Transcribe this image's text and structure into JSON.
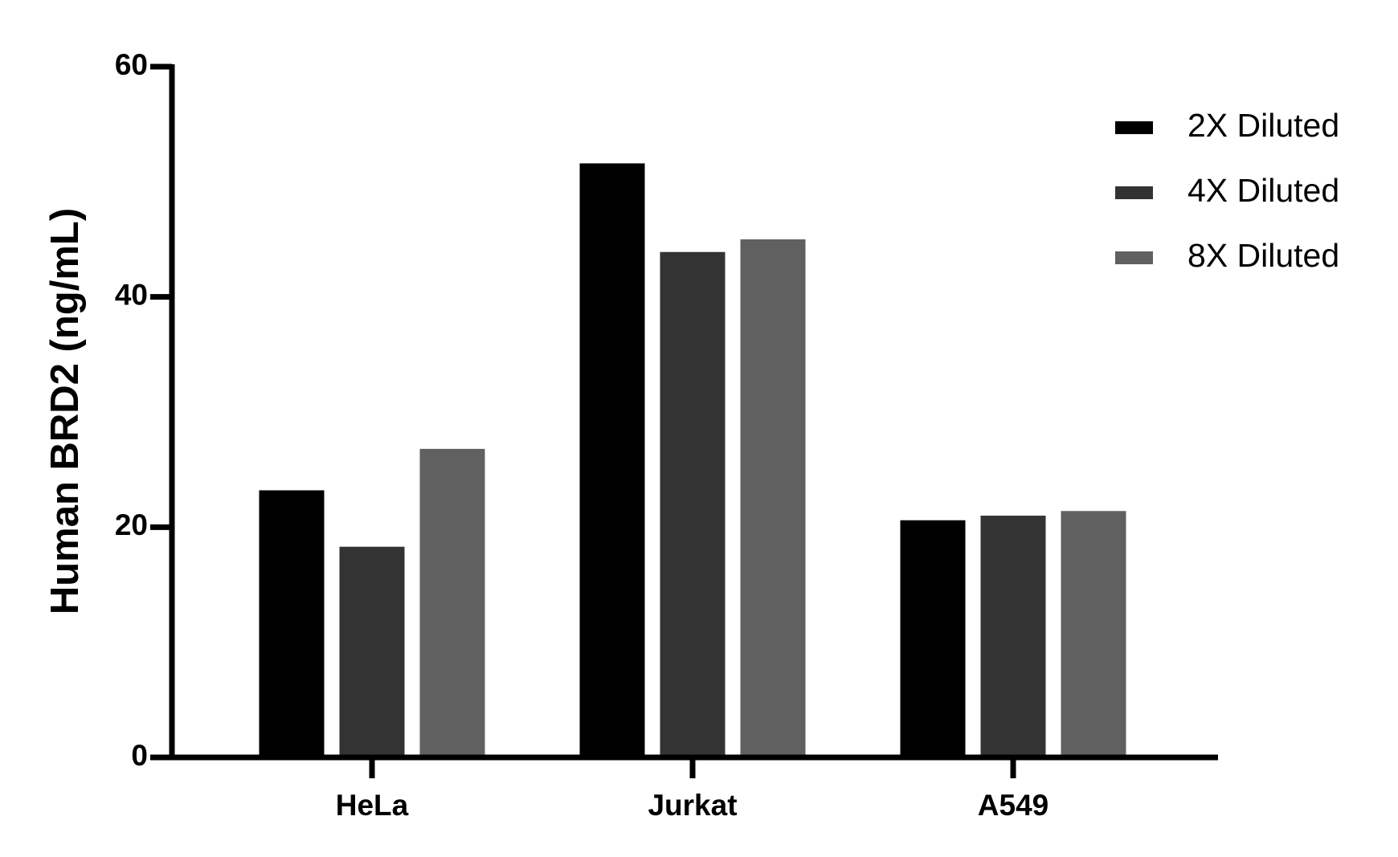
{
  "chart_data": {
    "type": "bar",
    "y_label": "Human BRD2 (ng/mL)",
    "categories": [
      "HeLa",
      "Jurkat",
      "A549"
    ],
    "series": [
      {
        "name": "2X Diluted",
        "color": "#000000",
        "values": [
          23.2,
          51.6,
          20.6
        ]
      },
      {
        "name": "4X Diluted",
        "color": "#333333",
        "values": [
          18.3,
          43.9,
          21.0
        ]
      },
      {
        "name": "8X Diluted",
        "color": "#606060",
        "values": [
          26.8,
          45.0,
          21.4
        ]
      }
    ],
    "ylim": [
      0,
      60
    ],
    "yticks": [
      0,
      20,
      40,
      60
    ],
    "grid": false,
    "legend": "upper right"
  }
}
